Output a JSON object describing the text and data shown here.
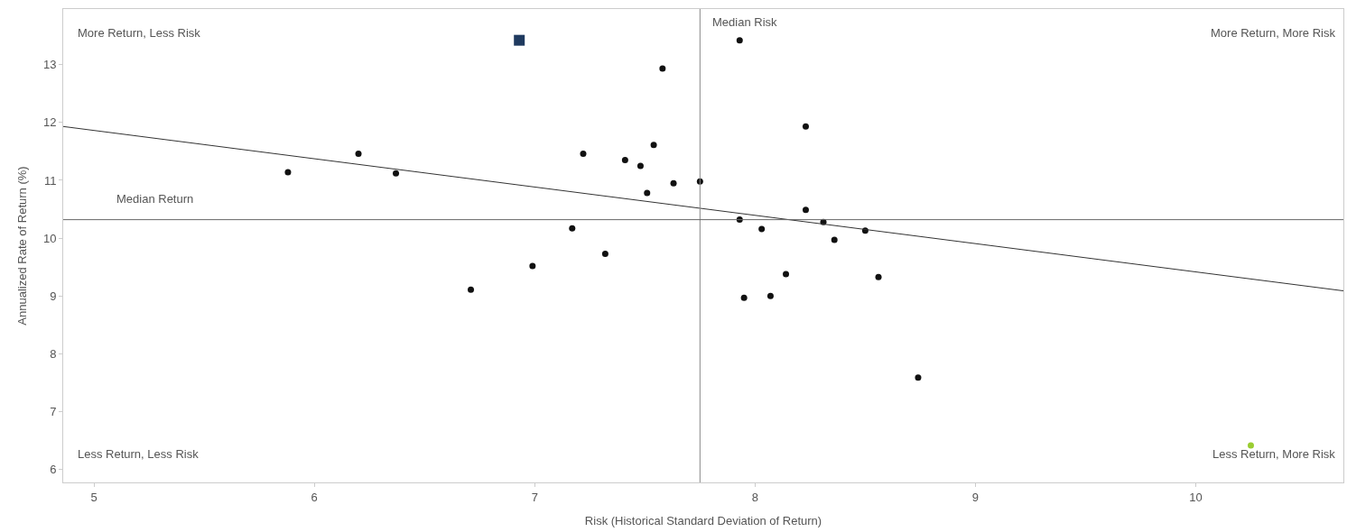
{
  "chart_data": {
    "type": "scatter",
    "xlabel": "Risk (Historical Standard Deviation of Return)",
    "ylabel": "Annualized Rate of Return (%)",
    "xlim": [
      4.86,
      10.67
    ],
    "xticks": [
      5,
      6,
      7,
      8,
      9,
      10
    ],
    "ylim": [
      5.78,
      13.96
    ],
    "yticks": [
      6,
      7,
      8,
      9,
      10,
      11,
      12,
      13
    ],
    "series": [
      {
        "color": "#111111",
        "marker": "circle",
        "x": [
          5.88,
          6.2,
          6.37,
          6.71,
          6.99,
          7.17,
          7.22,
          7.32,
          7.41,
          7.48,
          7.54,
          7.51,
          7.58,
          7.63,
          7.75,
          7.93,
          8.23,
          8.23,
          7.93,
          8.03,
          8.31,
          8.36,
          8.5,
          8.14,
          8.56,
          7.95,
          8.07,
          8.74
        ],
        "values": [
          11.14,
          11.46,
          11.12,
          9.11,
          9.52,
          10.17,
          11.46,
          9.73,
          11.35,
          11.25,
          11.61,
          10.78,
          12.93,
          10.95,
          10.98,
          13.42,
          11.93,
          10.49,
          10.32,
          10.16,
          10.28,
          9.97,
          10.13,
          9.38,
          9.33,
          8.97,
          9.0,
          7.59
        ]
      },
      {
        "color": "#1f3a5f",
        "marker": "square",
        "x": [
          6.93
        ],
        "values": [
          13.42
        ]
      },
      {
        "color": "#9acd32",
        "marker": "circle",
        "x": [
          10.25
        ],
        "values": [
          6.42
        ]
      },
      {
        "type": "line",
        "color": "#333333",
        "line_style": "solid",
        "x": [
          4.86,
          10.67
        ],
        "values": [
          11.93,
          9.09
        ]
      }
    ],
    "ref_lines": [
      {
        "axis": "x",
        "value": 7.75,
        "label": "Median Risk",
        "color": "#888888"
      },
      {
        "axis": "y",
        "value": 10.32,
        "label": "Median Return",
        "color": "#666666"
      }
    ],
    "annotations": [
      "More Return, Less Risk",
      "More Return, More Risk",
      "Less Return, Less Risk",
      "Less Return, More Risk"
    ]
  }
}
